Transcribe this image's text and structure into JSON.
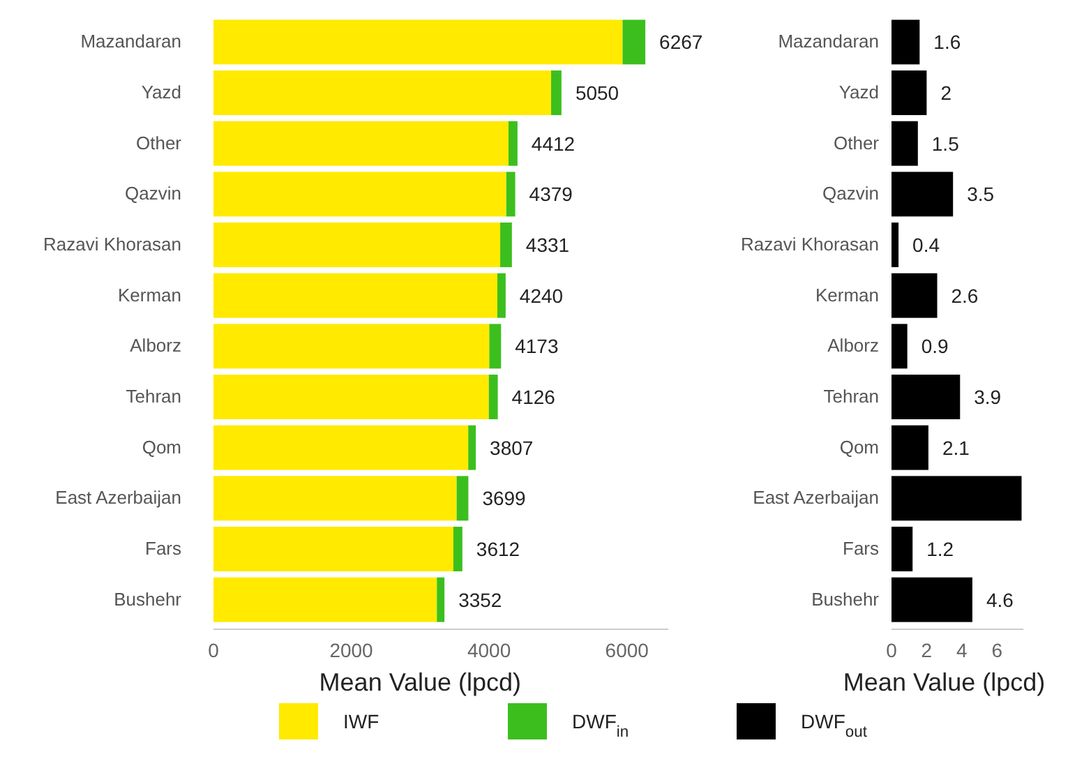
{
  "chart_data": [
    {
      "type": "bar",
      "orientation": "horizontal",
      "stacked": true,
      "xlabel": "Mean Value (lpcd)",
      "legend": "bottom",
      "grid": false,
      "categories": [
        "Mazandaran",
        "Yazd",
        "Other",
        "Qazvin",
        "Razavi Khorasan",
        "Kerman",
        "Alborz",
        "Tehran",
        "Qom",
        "East Azerbaijan",
        "Fars",
        "Bushehr"
      ],
      "series": [
        {
          "name": "IWF",
          "color": "#ffea00",
          "values": [
            5937,
            4900,
            4282,
            4249,
            4161,
            4120,
            4003,
            3996,
            3697,
            3529,
            3482,
            3242
          ]
        },
        {
          "name": "DWF$_{in}$",
          "color": "#3cbf1e",
          "values": [
            330,
            150,
            130,
            130,
            170,
            120,
            170,
            130,
            110,
            170,
            130,
            110
          ]
        }
      ],
      "totals": [
        "6267",
        "5050",
        "4412",
        "4379",
        "4331",
        "4240",
        "4173",
        "4126",
        "3807",
        "3699",
        "3612",
        "3352"
      ],
      "xlim": [
        0,
        6600
      ],
      "xticks": [
        0,
        2000,
        4000,
        6000
      ]
    },
    {
      "type": "bar",
      "orientation": "horizontal",
      "xlabel": "Mean Value (lpcd)",
      "legend": "bottom",
      "grid": false,
      "categories": [
        "Mazandaran",
        "Yazd",
        "Other",
        "Qazvin",
        "Razavi Khorasan",
        "Kerman",
        "Alborz",
        "Tehran",
        "Qom",
        "East Azerbaijan",
        "Fars",
        "Bushehr"
      ],
      "series": [
        {
          "name": "DWF$_{out}$",
          "color": "#000000",
          "values": [
            1.6,
            2,
            1.5,
            3.5,
            0.4,
            2.6,
            0.9,
            3.9,
            2.1,
            7.4,
            1.2,
            4.6
          ],
          "value_labels": [
            "1.6",
            "2",
            "1.5",
            "3.5",
            "0.4",
            "2.6",
            "0.9",
            "3.9",
            "2.1",
            null,
            "1.2",
            "4.6"
          ]
        }
      ],
      "xlim": [
        0,
        7.5
      ],
      "xticks": [
        0,
        2,
        4,
        6
      ]
    }
  ]
}
